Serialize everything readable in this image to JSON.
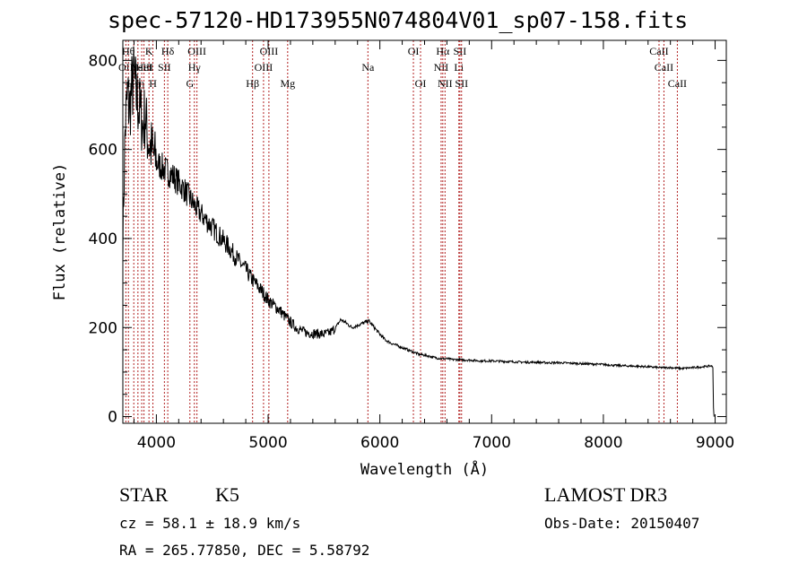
{
  "chart_data": {
    "type": "line",
    "title": "spec-57120-HD173955N074804V01_sp07-158.fits",
    "xlabel": "Wavelength (Å)",
    "ylabel": "Flux (relative)",
    "xlim": [
      3700,
      9100
    ],
    "ylim": [
      -15,
      845
    ],
    "xticks": [
      4000,
      5000,
      6000,
      7000,
      8000,
      9000
    ],
    "yticks": [
      0,
      200,
      400,
      600,
      800
    ],
    "grid": false,
    "series": [
      {
        "name": "spectrum",
        "x": [
          3700,
          3720,
          3740,
          3760,
          3780,
          3800,
          3820,
          3840,
          3860,
          3880,
          3900,
          3920,
          3940,
          3960,
          3980,
          4000,
          4050,
          4100,
          4150,
          4200,
          4250,
          4300,
          4350,
          4400,
          4450,
          4500,
          4550,
          4600,
          4650,
          4700,
          4750,
          4800,
          4850,
          4900,
          4950,
          5000,
          5050,
          5100,
          5150,
          5200,
          5250,
          5300,
          5350,
          5400,
          5450,
          5500,
          5550,
          5600,
          5650,
          5700,
          5750,
          5800,
          5850,
          5900,
          5950,
          6000,
          6050,
          6100,
          6150,
          6200,
          6250,
          6300,
          6350,
          6400,
          6450,
          6500,
          6550,
          6600,
          6650,
          6700,
          6750,
          6800,
          6900,
          7000,
          7100,
          7200,
          7300,
          7400,
          7500,
          7600,
          7700,
          7800,
          7900,
          8000,
          8100,
          8200,
          8300,
          8400,
          8500,
          8600,
          8700,
          8800,
          8900,
          8960,
          8980
        ],
        "y": [
          400,
          640,
          720,
          690,
          735,
          760,
          720,
          700,
          680,
          650,
          680,
          630,
          610,
          600,
          585,
          570,
          560,
          550,
          540,
          525,
          510,
          490,
          470,
          455,
          440,
          425,
          410,
          395,
          380,
          362,
          345,
          330,
          310,
          295,
          280,
          262,
          250,
          240,
          225,
          212,
          200,
          193,
          188,
          187,
          186,
          185,
          188,
          198,
          218,
          210,
          200,
          205,
          210,
          215,
          200,
          185,
          172,
          165,
          160,
          155,
          150,
          145,
          140,
          138,
          135,
          132,
          130,
          130,
          128,
          128,
          127,
          127,
          125,
          125,
          124,
          123,
          122,
          122,
          121,
          121,
          120,
          119,
          118,
          117,
          115,
          114,
          113,
          112,
          110,
          110,
          108,
          110,
          112,
          114,
          112
        ]
      }
    ],
    "lines": [
      {
        "wl": 3727,
        "row": 1,
        "label": "OII"
      },
      {
        "wl": 3750,
        "row": 0,
        "label": "Hθ"
      },
      {
        "wl": 3798,
        "row": 2,
        "label": "Hη"
      },
      {
        "wl": 3835,
        "row": 2,
        "label": "Hη"
      },
      {
        "wl": 3869,
        "row": 1,
        "label": "NeIII"
      },
      {
        "wl": 3889,
        "row": 1,
        "label": "HeI"
      },
      {
        "wl": 3934,
        "row": 0,
        "label": "K"
      },
      {
        "wl": 3969,
        "row": 2,
        "label": "H"
      },
      {
        "wl": 4072,
        "row": 1,
        "label": "SII"
      },
      {
        "wl": 4102,
        "row": 0,
        "label": "Hδ"
      },
      {
        "wl": 4300,
        "row": 2,
        "label": "G"
      },
      {
        "wl": 4340,
        "row": 1,
        "label": "Hγ"
      },
      {
        "wl": 4363,
        "row": 0,
        "label": "OIII"
      },
      {
        "wl": 4861,
        "row": 2,
        "label": "Hβ"
      },
      {
        "wl": 4959,
        "row": 1,
        "label": "OIII"
      },
      {
        "wl": 5007,
        "row": 0,
        "label": "OIII"
      },
      {
        "wl": 5175,
        "row": 2,
        "label": "Mg"
      },
      {
        "wl": 5893,
        "row": 1,
        "label": "Na"
      },
      {
        "wl": 6300,
        "row": 0,
        "label": "OI"
      },
      {
        "wl": 6364,
        "row": 2,
        "label": "OI"
      },
      {
        "wl": 6548,
        "row": 1,
        "label": "NII"
      },
      {
        "wl": 6563,
        "row": 0,
        "label": "Hα"
      },
      {
        "wl": 6583,
        "row": 2,
        "label": "NII"
      },
      {
        "wl": 6707,
        "row": 1,
        "label": "Li"
      },
      {
        "wl": 6716,
        "row": 0,
        "label": "SII"
      },
      {
        "wl": 6731,
        "row": 2,
        "label": "SII"
      },
      {
        "wl": 8498,
        "row": 0,
        "label": "CaII"
      },
      {
        "wl": 8542,
        "row": 1,
        "label": "CaII"
      },
      {
        "wl": 8662,
        "row": 2,
        "label": "CaII"
      }
    ]
  },
  "info": {
    "object_class": "STAR",
    "subclass": "K5",
    "survey": "LAMOST DR3",
    "cz": "cz = 58.1 ± 18.9 km/s",
    "obs_date": "Obs-Date: 20150407",
    "radec": "RA = 265.77850, DEC =   5.58792"
  },
  "colors": {
    "axis": "#000000",
    "spectrum": "#000000",
    "line_marker": "#b22222"
  }
}
